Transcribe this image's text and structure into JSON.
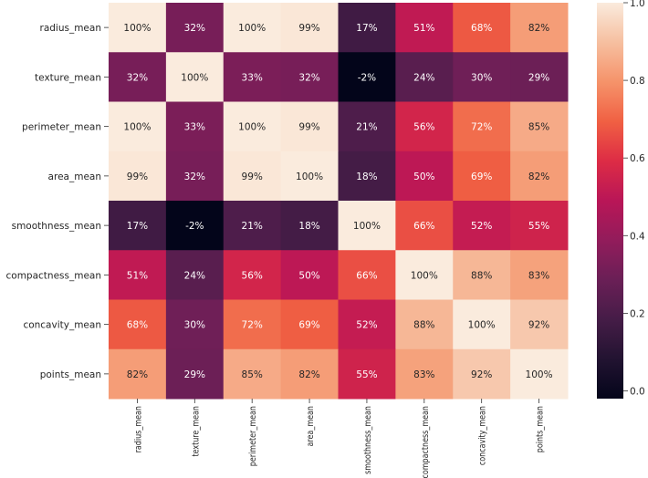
{
  "chart_data": {
    "type": "heatmap",
    "title": "",
    "xlabel": "",
    "ylabel": "",
    "x_categories": [
      "radius_mean",
      "texture_mean",
      "perimeter_mean",
      "area_mean",
      "smoothness_mean",
      "compactness_mean",
      "concavity_mean",
      "points_mean"
    ],
    "y_categories": [
      "radius_mean",
      "texture_mean",
      "perimeter_mean",
      "area_mean",
      "smoothness_mean",
      "compactness_mean",
      "concavity_mean",
      "points_mean"
    ],
    "values": [
      [
        1.0,
        0.32,
        1.0,
        0.99,
        0.17,
        0.51,
        0.68,
        0.82
      ],
      [
        0.32,
        1.0,
        0.33,
        0.32,
        -0.02,
        0.24,
        0.3,
        0.29
      ],
      [
        1.0,
        0.33,
        1.0,
        0.99,
        0.21,
        0.56,
        0.72,
        0.85
      ],
      [
        0.99,
        0.32,
        0.99,
        1.0,
        0.18,
        0.5,
        0.69,
        0.82
      ],
      [
        0.17,
        -0.02,
        0.21,
        0.18,
        1.0,
        0.66,
        0.52,
        0.55
      ],
      [
        0.51,
        0.24,
        0.56,
        0.5,
        0.66,
        1.0,
        0.88,
        0.83
      ],
      [
        0.68,
        0.3,
        0.72,
        0.69,
        0.52,
        0.88,
        1.0,
        0.92
      ],
      [
        0.82,
        0.29,
        0.85,
        0.82,
        0.55,
        0.83,
        0.92,
        1.0
      ]
    ],
    "annotations": [
      [
        "100%",
        "32%",
        "100%",
        "99%",
        "17%",
        "51%",
        "68%",
        "82%"
      ],
      [
        "32%",
        "100%",
        "33%",
        "32%",
        "-2%",
        "24%",
        "30%",
        "29%"
      ],
      [
        "100%",
        "33%",
        "100%",
        "99%",
        "21%",
        "56%",
        "72%",
        "85%"
      ],
      [
        "99%",
        "32%",
        "99%",
        "100%",
        "18%",
        "50%",
        "69%",
        "82%"
      ],
      [
        "17%",
        "-2%",
        "21%",
        "18%",
        "100%",
        "66%",
        "52%",
        "55%"
      ],
      [
        "51%",
        "24%",
        "56%",
        "50%",
        "66%",
        "100%",
        "88%",
        "83%"
      ],
      [
        "68%",
        "30%",
        "72%",
        "69%",
        "52%",
        "88%",
        "100%",
        "92%"
      ],
      [
        "82%",
        "29%",
        "85%",
        "82%",
        "55%",
        "83%",
        "92%",
        "100%"
      ]
    ],
    "colormap": "rocket",
    "color_range": [
      -0.02,
      1.0
    ],
    "colorbar_ticks": [
      "0.0",
      "0.2",
      "0.4",
      "0.6",
      "0.8",
      "1.0"
    ],
    "colorbar_tick_values": [
      0.0,
      0.2,
      0.4,
      0.6,
      0.8,
      1.0
    ],
    "colorbar_position": "right",
    "grid": false
  }
}
